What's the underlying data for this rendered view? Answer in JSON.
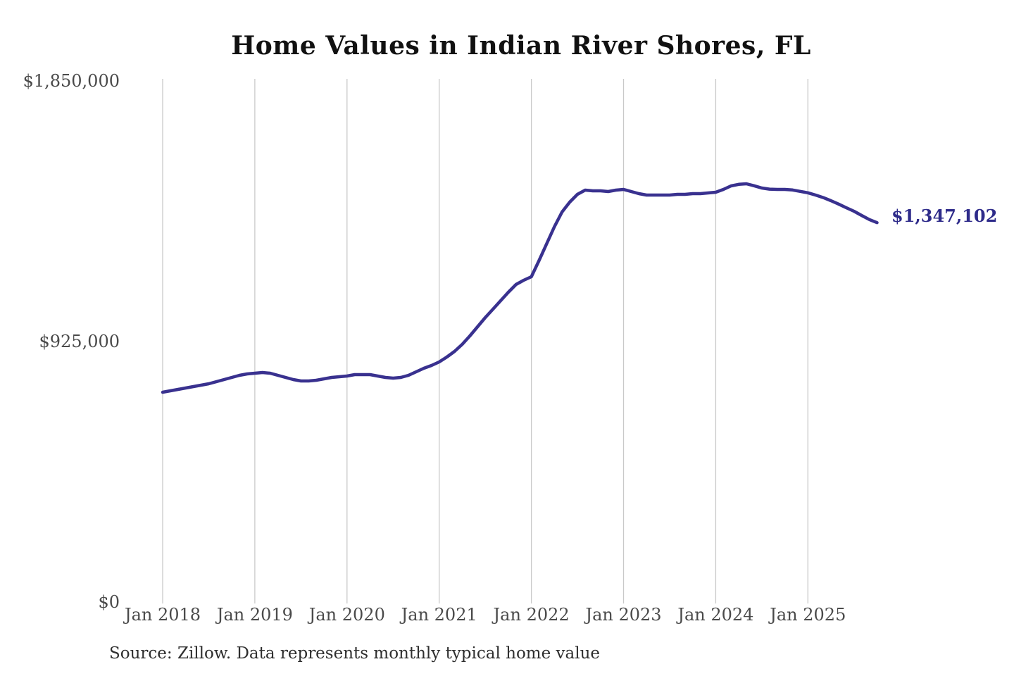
{
  "page": {
    "background": "#ffffff"
  },
  "title": "Home Values in Indian River Shores, FL",
  "source_note": "Source: Zillow. Data represents monthly typical home value",
  "colors": {
    "line": "#39318f",
    "end_label": "#2e2b8a",
    "grid": "#c9c9c9",
    "tick_text": "#4a4a4a",
    "title_text": "#111111",
    "source_text": "#2e2e2e",
    "background": "#ffffff"
  },
  "chart_data": {
    "type": "line",
    "title": "Home Values in Indian River Shores, FL",
    "xlabel": "",
    "ylabel": "",
    "x_start": "Jan 2018",
    "x_end": "Oct 2025",
    "frequency": "monthly",
    "x_ticks": [
      "Jan 2018",
      "Jan 2019",
      "Jan 2020",
      "Jan 2021",
      "Jan 2022",
      "Jan 2023",
      "Jan 2024",
      "Jan 2025"
    ],
    "y_ticks": [
      {
        "label": "$1,850,000",
        "value": 1850000
      },
      {
        "label": "$925,000",
        "value": 925000
      },
      {
        "label": "$0",
        "value": 0
      }
    ],
    "ylim": [
      0,
      1850000
    ],
    "grid": "vertical",
    "legend": "none",
    "last_value": 1347102,
    "last_value_label": "$1,347,102",
    "series": [
      {
        "name": "Monthly typical home value",
        "values": [
          745000,
          750000,
          755000,
          760000,
          765000,
          770000,
          775000,
          782500,
          790000,
          797500,
          805000,
          810000,
          812500,
          815000,
          812500,
          805000,
          797500,
          790000,
          785000,
          785000,
          787500,
          792500,
          797500,
          800000,
          802500,
          807500,
          807500,
          807500,
          802500,
          797500,
          795000,
          797500,
          805000,
          817500,
          830000,
          840000,
          852500,
          870000,
          890000,
          915000,
          945000,
          977500,
          1010000,
          1040000,
          1070000,
          1100000,
          1127500,
          1142500,
          1155000,
          1212500,
          1272500,
          1332500,
          1385000,
          1420000,
          1447500,
          1462500,
          1460000,
          1460000,
          1457500,
          1462500,
          1465000,
          1457500,
          1450000,
          1445000,
          1445000,
          1445000,
          1445000,
          1447500,
          1447500,
          1450000,
          1450000,
          1452500,
          1455000,
          1465000,
          1477500,
          1483000,
          1485000,
          1478000,
          1470000,
          1466000,
          1465000,
          1465000,
          1463000,
          1458000,
          1453000,
          1445000,
          1436000,
          1425000,
          1413000,
          1400000,
          1387500,
          1372500,
          1358000,
          1347102
        ]
      }
    ]
  }
}
